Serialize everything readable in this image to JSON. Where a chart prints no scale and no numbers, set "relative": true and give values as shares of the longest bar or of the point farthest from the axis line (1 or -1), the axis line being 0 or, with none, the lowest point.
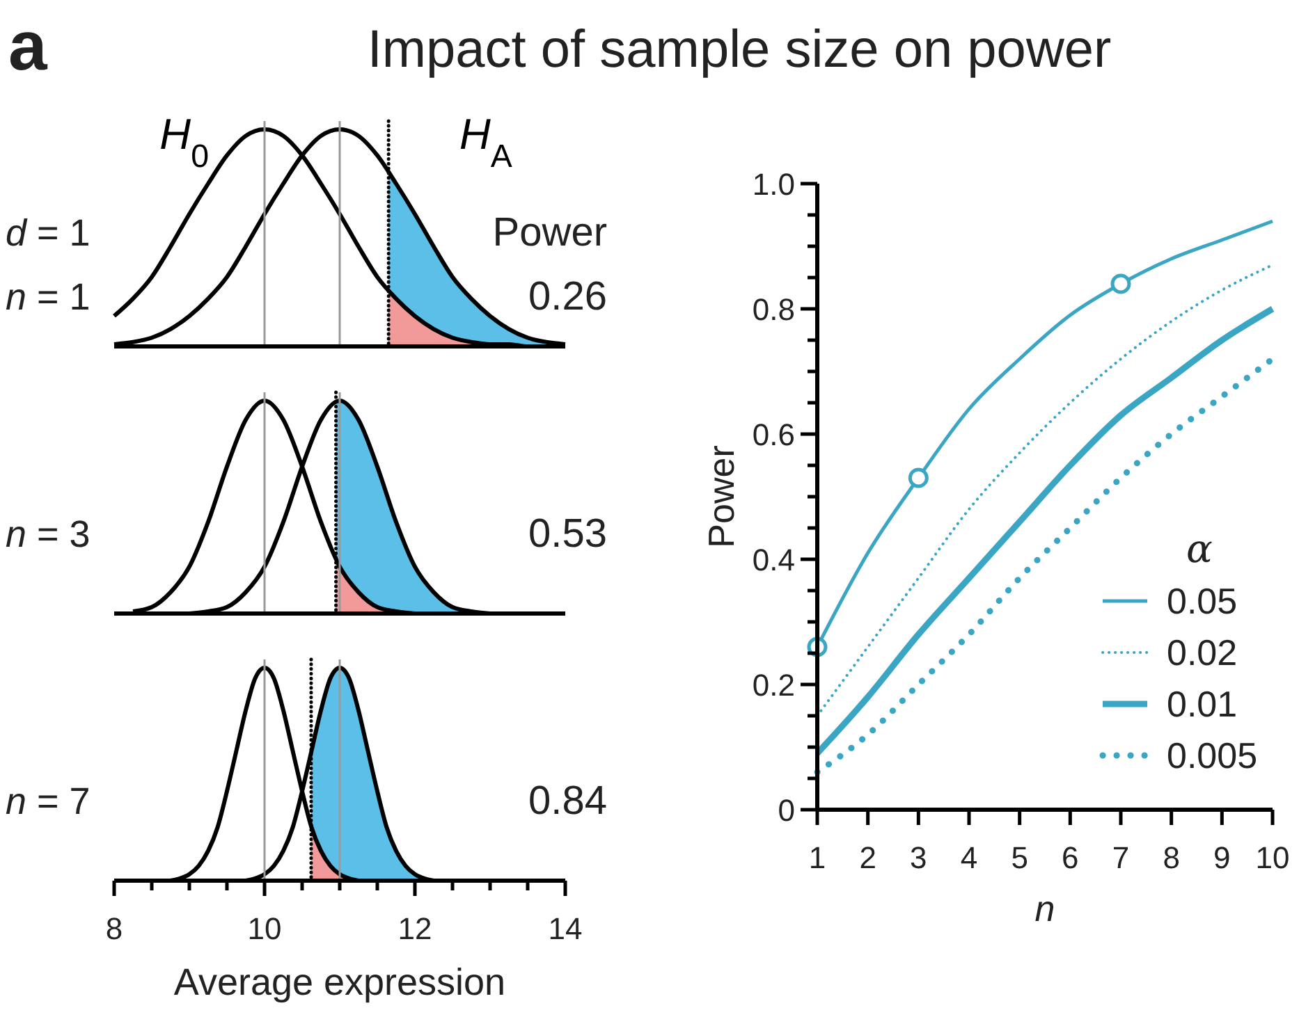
{
  "chart_data": [
    {
      "type": "line",
      "title": "Impact of sample size on power",
      "relative": true,
      "xlim": [
        8,
        14
      ],
      "tick_labels": false,
      "legend": false,
      "annotations": [
        "a",
        "d = 1",
        "n = 1",
        "Power",
        "0.26"
      ],
      "ref_lines": [
        {
          "axis": "x",
          "value": 10,
          "color": "#999999"
        },
        {
          "axis": "x",
          "value": 11,
          "color": "#999999"
        },
        {
          "axis": "x",
          "value": 11.65,
          "color": "#000000",
          "line_style": "dotted"
        }
      ],
      "series": [
        {
          "type": "area",
          "color": "#5bbfe8",
          "x": [
            11.65,
            11.75,
            12,
            12.25,
            12.5,
            12.75,
            13,
            13.25,
            13.5,
            13.75,
            14
          ],
          "values": [
            0.81,
            0.75,
            0.61,
            0.46,
            0.32,
            0.22,
            0.14,
            0.08,
            0.04,
            0.02,
            0.01
          ]
        },
        {
          "type": "area",
          "color": "#f29a9a",
          "x": [
            11.65,
            11.75,
            12,
            12.25,
            12.5,
            12.75,
            13,
            13.25,
            13.5
          ],
          "values": [
            0.26,
            0.22,
            0.14,
            0.08,
            0.04,
            0.02,
            0.01,
            0.01,
            0
          ]
        },
        {
          "name": "H$_{0}$",
          "color": "#000000",
          "x": [
            8,
            8.25,
            8.5,
            8.75,
            9,
            9.25,
            9.5,
            9.75,
            10,
            10.25,
            10.5,
            10.75,
            11,
            11.25,
            11.5,
            11.75,
            12,
            12.25,
            12.5,
            12.75,
            13,
            13.25,
            13.5,
            13.75,
            14
          ],
          "values": [
            0.14,
            0.22,
            0.32,
            0.46,
            0.61,
            0.75,
            0.88,
            0.97,
            1,
            0.97,
            0.88,
            0.75,
            0.61,
            0.46,
            0.32,
            0.22,
            0.14,
            0.08,
            0.04,
            0.02,
            0.01,
            0.01,
            0,
            0,
            0
          ]
        },
        {
          "name": "H$_{A}$",
          "color": "#000000",
          "x": [
            8,
            8.25,
            8.5,
            8.75,
            9,
            9.25,
            9.5,
            9.75,
            10,
            10.25,
            10.5,
            10.75,
            11,
            11.25,
            11.5,
            11.75,
            12,
            12.25,
            12.5,
            12.75,
            13,
            13.25,
            13.5,
            13.75,
            14
          ],
          "values": [
            0.01,
            0.02,
            0.04,
            0.08,
            0.14,
            0.22,
            0.32,
            0.46,
            0.61,
            0.75,
            0.88,
            0.97,
            1,
            0.97,
            0.88,
            0.75,
            0.61,
            0.46,
            0.32,
            0.22,
            0.14,
            0.08,
            0.04,
            0.02,
            0.01
          ]
        }
      ]
    },
    {
      "type": "line",
      "relative": true,
      "xlim": [
        8,
        14
      ],
      "tick_labels": false,
      "legend": false,
      "annotations": [
        "n = 3",
        "0.53"
      ],
      "ref_lines": [
        {
          "axis": "x",
          "value": 10,
          "color": "#999999"
        },
        {
          "axis": "x",
          "value": 11,
          "color": "#999999"
        },
        {
          "axis": "x",
          "value": 10.95,
          "color": "#000000",
          "line_style": "dotted"
        }
      ],
      "series": [
        {
          "type": "area",
          "color": "#5bbfe8",
          "x": [
            10.95,
            11,
            11.25,
            11.5,
            11.75,
            12,
            12.25,
            12.5,
            12.75,
            13,
            13.25,
            13.5,
            13.75,
            14
          ],
          "values": [
            1,
            1,
            0.91,
            0.69,
            0.43,
            0.22,
            0.1,
            0.03,
            0.01,
            0,
            0,
            0,
            0,
            0
          ]
        },
        {
          "type": "area",
          "color": "#f29a9a",
          "x": [
            10.95,
            11,
            11.25,
            11.5,
            11.75,
            12,
            12.25,
            12.5
          ],
          "values": [
            0.26,
            0.22,
            0.1,
            0.03,
            0.01,
            0,
            0,
            0
          ]
        },
        {
          "color": "#000000",
          "x": [
            8.25,
            8.5,
            8.75,
            9,
            9.25,
            9.5,
            9.75,
            10,
            10.25,
            10.5,
            10.75,
            11,
            11.25,
            11.5,
            11.75,
            12
          ],
          "values": [
            0.01,
            0.03,
            0.1,
            0.22,
            0.43,
            0.69,
            0.91,
            1,
            0.91,
            0.69,
            0.43,
            0.22,
            0.1,
            0.03,
            0.01,
            0
          ]
        },
        {
          "color": "#000000",
          "x": [
            9,
            9.25,
            9.5,
            9.75,
            10,
            10.25,
            10.5,
            10.75,
            11,
            11.25,
            11.5,
            11.75,
            12,
            12.25,
            12.5,
            12.75,
            13
          ],
          "values": [
            0,
            0.01,
            0.03,
            0.1,
            0.22,
            0.43,
            0.69,
            0.91,
            1,
            0.91,
            0.69,
            0.43,
            0.22,
            0.1,
            0.03,
            0.01,
            0
          ]
        }
      ]
    },
    {
      "type": "line",
      "relative": true,
      "xlim": [
        8,
        14
      ],
      "xlabel": "Average expression",
      "tick_labels": "x",
      "legend": false,
      "annotations": [
        "n = 7",
        "0.84"
      ],
      "xticks": [
        8,
        {
          "value": 8.5,
          "label": null
        },
        {
          "value": 9,
          "label": null
        },
        {
          "value": 9.5,
          "label": null
        },
        10,
        {
          "value": 10.5,
          "label": null
        },
        {
          "value": 11,
          "label": null
        },
        {
          "value": 11.5,
          "label": null
        },
        12,
        {
          "value": 12.5,
          "label": null
        },
        {
          "value": 13,
          "label": null
        },
        {
          "value": 13.5,
          "label": null
        },
        14
      ],
      "ref_lines": [
        {
          "axis": "x",
          "value": 10,
          "color": "#999999"
        },
        {
          "axis": "x",
          "value": 11,
          "color": "#999999"
        },
        {
          "axis": "x",
          "value": 10.62,
          "color": "#000000",
          "line_style": "dotted"
        }
      ],
      "series": [
        {
          "type": "area",
          "color": "#5bbfe8",
          "x": [
            10.62,
            10.75,
            10.875,
            11,
            11.125,
            11.25,
            11.375,
            11.5,
            11.625,
            11.75,
            11.875,
            12,
            12.125,
            12.25
          ],
          "values": [
            0.6,
            0.8,
            0.95,
            1,
            0.95,
            0.8,
            0.61,
            0.42,
            0.25,
            0.14,
            0.07,
            0.03,
            0.01,
            0
          ]
        },
        {
          "type": "area",
          "color": "#f29a9a",
          "x": [
            10.62,
            10.75,
            10.875,
            11,
            11.125,
            11.25
          ],
          "values": [
            0.26,
            0.14,
            0.07,
            0.03,
            0.01,
            0
          ]
        },
        {
          "color": "#000000",
          "x": [
            8.75,
            8.875,
            9,
            9.125,
            9.25,
            9.375,
            9.5,
            9.625,
            9.75,
            9.875,
            10,
            10.125,
            10.25,
            10.375,
            10.5,
            10.625,
            10.75,
            10.875,
            11,
            11.125,
            11.25
          ],
          "values": [
            0,
            0.01,
            0.03,
            0.07,
            0.14,
            0.25,
            0.42,
            0.61,
            0.8,
            0.95,
            1,
            0.95,
            0.8,
            0.61,
            0.42,
            0.25,
            0.14,
            0.07,
            0.03,
            0.01,
            0
          ]
        },
        {
          "color": "#000000",
          "x": [
            9.75,
            9.875,
            10,
            10.125,
            10.25,
            10.375,
            10.5,
            10.625,
            10.75,
            10.875,
            11,
            11.125,
            11.25,
            11.375,
            11.5,
            11.625,
            11.75,
            11.875,
            12,
            12.125,
            12.25
          ],
          "values": [
            0,
            0.01,
            0.03,
            0.07,
            0.14,
            0.25,
            0.42,
            0.61,
            0.8,
            0.95,
            1,
            0.95,
            0.8,
            0.61,
            0.42,
            0.25,
            0.14,
            0.07,
            0.03,
            0.01,
            0
          ]
        }
      ]
    },
    {
      "type": "line",
      "xlabel": "n",
      "ylabel": "Power",
      "legend_title": "α",
      "legend": "bottom right",
      "xlim": [
        1,
        10
      ],
      "xticks": [
        1,
        2,
        3,
        4,
        5,
        6,
        7,
        8,
        9,
        10
      ],
      "ylim": [
        0,
        1
      ],
      "yticks": [
        0,
        {
          "value": 0.05,
          "label": null
        },
        {
          "value": 0.1,
          "label": null
        },
        {
          "value": 0.15,
          "label": null
        },
        0.2,
        {
          "value": 0.25,
          "label": null
        },
        {
          "value": 0.3,
          "label": null
        },
        {
          "value": 0.35,
          "label": null
        },
        0.4,
        {
          "value": 0.45,
          "label": null
        },
        {
          "value": 0.5,
          "label": null
        },
        {
          "value": 0.55,
          "label": null
        },
        0.6,
        {
          "value": 0.65,
          "label": null
        },
        {
          "value": 0.7,
          "label": null
        },
        {
          "value": 0.75,
          "label": null
        },
        0.8,
        {
          "value": 0.85,
          "label": null
        },
        {
          "value": 0.9,
          "label": null
        },
        {
          "value": 0.95,
          "label": null
        },
        {
          "value": 1,
          "label": "1.0"
        }
      ],
      "x": [
        1,
        2,
        3,
        4,
        5,
        6,
        7,
        8,
        9,
        10
      ],
      "series": [
        {
          "name": "0.05",
          "color": "#3aa6c4",
          "line_style": "solid",
          "values": [
            0.26,
            0.41,
            0.53,
            0.64,
            0.72,
            0.79,
            0.84,
            0.88,
            0.91,
            0.94
          ]
        },
        {
          "name": "0.02",
          "color": "#3aa6c4",
          "line_style": "dotted",
          "values": [
            0.15,
            0.26,
            0.37,
            0.48,
            0.57,
            0.65,
            0.72,
            0.78,
            0.83,
            0.87
          ]
        },
        {
          "name": "0.01",
          "color": "#3aa6c4",
          "line_style": "solid",
          "values": [
            0.09,
            0.18,
            0.28,
            0.37,
            0.46,
            0.55,
            0.63,
            0.69,
            0.75,
            0.8
          ]
        },
        {
          "name": "0.005",
          "color": "#3aa6c4",
          "line_style": "dotted",
          "values": [
            0.06,
            0.12,
            0.2,
            0.28,
            0.37,
            0.45,
            0.53,
            0.6,
            0.66,
            0.72
          ]
        },
        {
          "type": "scatter",
          "marker": "circle",
          "color": "#3aa6c4",
          "x": [
            1,
            3,
            7
          ],
          "values": [
            0.26,
            0.53,
            0.84
          ]
        }
      ]
    }
  ]
}
